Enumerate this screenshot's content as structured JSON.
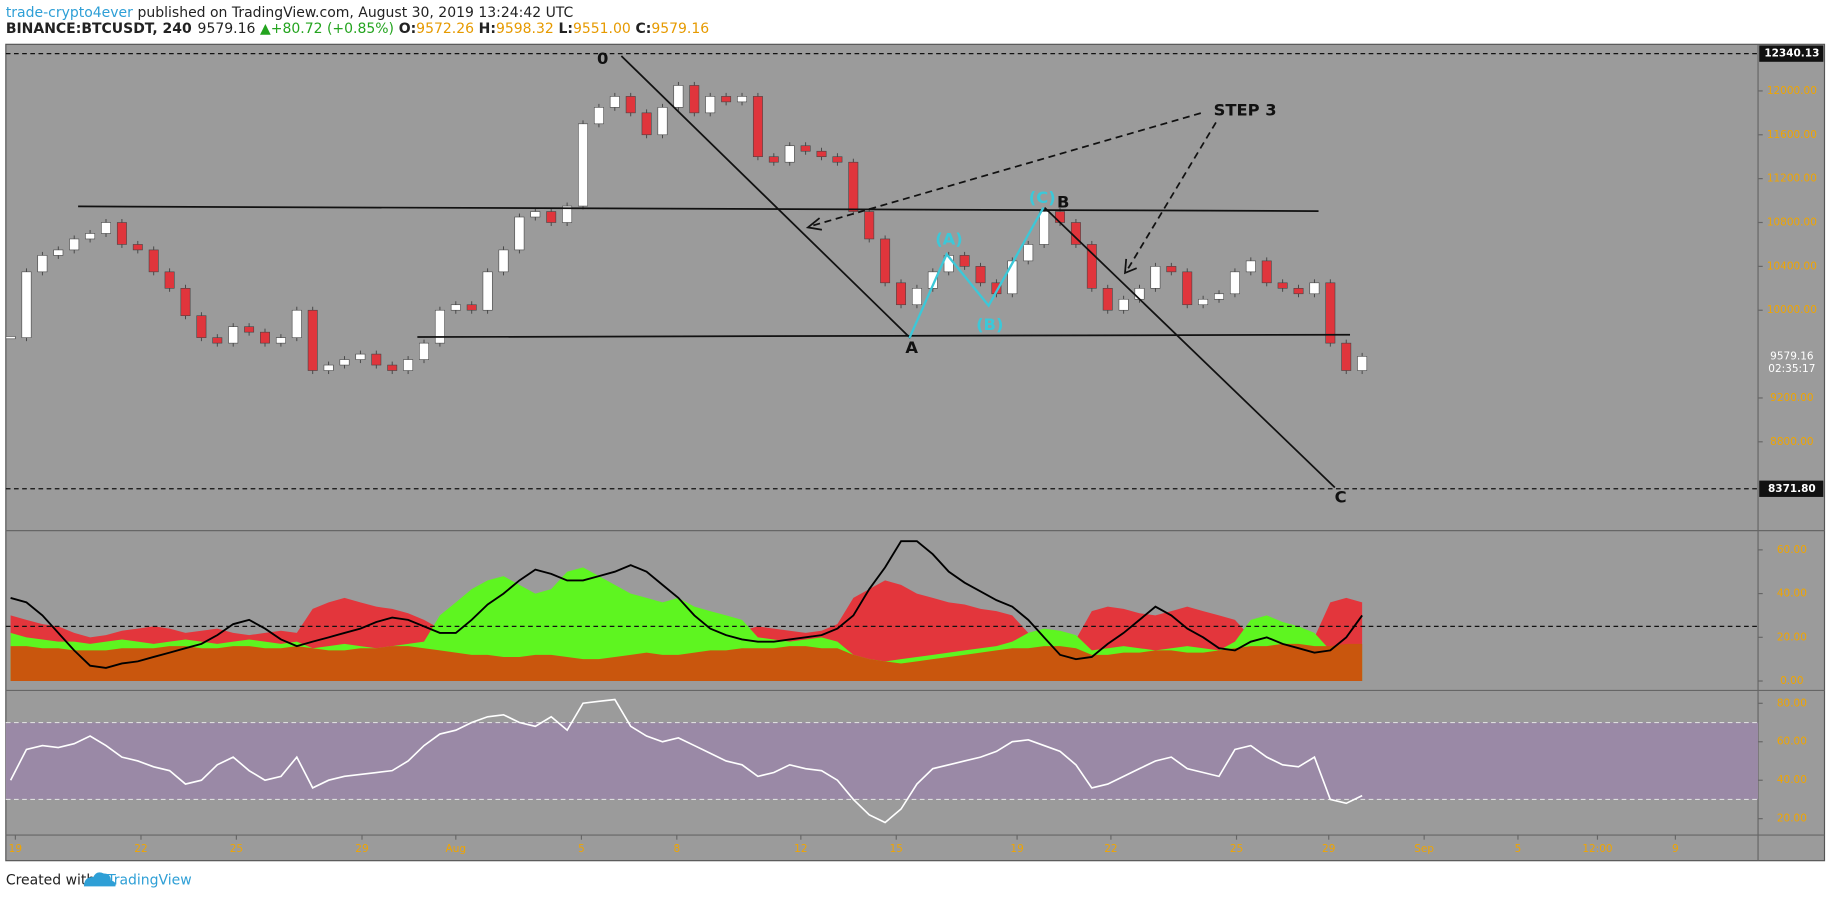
{
  "header": {
    "author": "trade-crypto4ever",
    "published": "published on TradingView.com, August 30, 2019 13:24:42 UTC",
    "symbol": "BINANCE:BTCUSDT, 240",
    "last": "9579.16",
    "change": "▲+80.72 (+0.85%)",
    "ohlc": [
      {
        "label": "O:",
        "value": "9572.26"
      },
      {
        "label": "H:",
        "value": "9598.32"
      },
      {
        "label": "L:",
        "value": "9551.00"
      },
      {
        "label": "C:",
        "value": "9579.16"
      }
    ]
  },
  "chart_data": [
    {
      "type": "candlestick",
      "values": [
        9750,
        10350,
        10500,
        10550,
        10650,
        10700,
        10800,
        10600,
        10550,
        10350,
        10200,
        9950,
        9750,
        9700,
        9850,
        9800,
        9700,
        9750,
        10000,
        9450,
        9500,
        9550,
        9600,
        9500,
        9450,
        9550,
        9700,
        10000,
        10050,
        10000,
        10350,
        10550,
        10850,
        10900,
        10800,
        10950,
        11700,
        11850,
        11950,
        11800,
        11600,
        11850,
        12050,
        11800,
        11950,
        11900,
        11950,
        11400,
        11350,
        11500,
        11450,
        11400,
        11350,
        10900,
        10650,
        10250,
        10050,
        10200,
        10350,
        10500,
        10400,
        10250,
        10150,
        10450,
        10600,
        10900,
        10800,
        10600,
        10200,
        10000,
        10100,
        10200,
        10400,
        10350,
        10050,
        10100,
        10150,
        10350,
        10450,
        10250,
        10200,
        10150,
        10250,
        9700,
        9450,
        9579.16
      ],
      "up_color": "#ffffff",
      "down_color": "#e0353c",
      "ylim": [
        7990,
        12425
      ],
      "yticks": [
        {
          "value": 12000,
          "label": "12000.00"
        },
        {
          "value": 11600,
          "label": "11600.00"
        },
        {
          "value": 11200,
          "label": "11200.00"
        },
        {
          "value": 10800,
          "label": "10800.00"
        },
        {
          "value": 10400,
          "label": "10400.00"
        },
        {
          "value": 10000,
          "label": "10000.00"
        },
        {
          "value": 9200,
          "label": "9200.00"
        },
        {
          "value": 8800,
          "label": "8800.00"
        }
      ],
      "levels": [
        {
          "value": 12340.13,
          "label": "12340.13"
        },
        {
          "value": 8371.8,
          "label": "8371.80"
        }
      ],
      "last": {
        "value": 9579.16,
        "label": "9579.16"
      },
      "countdown": "02:35:17",
      "xlim": [
        -0.3,
        109.9
      ],
      "xticks": [
        {
          "value": 0.3,
          "label": "19"
        },
        {
          "value": 8.2,
          "label": "22"
        },
        {
          "value": 14.2,
          "label": "25"
        },
        {
          "value": 22.1,
          "label": "29"
        },
        {
          "value": 28.0,
          "label": "Aug"
        },
        {
          "value": 35.9,
          "label": "5"
        },
        {
          "value": 41.9,
          "label": "8"
        },
        {
          "value": 49.7,
          "label": "12"
        },
        {
          "value": 55.7,
          "label": "15"
        },
        {
          "value": 63.3,
          "label": "19"
        },
        {
          "value": 69.2,
          "label": "22"
        },
        {
          "value": 77.1,
          "label": "25"
        },
        {
          "value": 82.9,
          "label": "29"
        },
        {
          "value": 88.9,
          "label": "Sep"
        },
        {
          "value": 94.8,
          "label": "5"
        },
        {
          "value": 99.8,
          "label": "12:00"
        },
        {
          "value": 104.7,
          "label": "9"
        }
      ]
    },
    {
      "type": "area",
      "ylim": [
        -4.3,
        68.8
      ],
      "yticks": [
        {
          "value": 60,
          "label": "60.00"
        },
        {
          "value": 40,
          "label": "40.00"
        },
        {
          "value": 20,
          "label": "20.00"
        },
        {
          "value": 0,
          "label": "0.00"
        }
      ],
      "level": 25,
      "series": [
        {
          "color": "#e3363c",
          "values": [
            30,
            28,
            26,
            25,
            22,
            20,
            21,
            23,
            24,
            25,
            24,
            22,
            23,
            24,
            22,
            21,
            22,
            23,
            22,
            33,
            36,
            38,
            36,
            34,
            33,
            31,
            28,
            24,
            25,
            26,
            25,
            24,
            23,
            22,
            24,
            25,
            26,
            25,
            24,
            23,
            24,
            25,
            26,
            24,
            23,
            22,
            23,
            25,
            24,
            23,
            22,
            23,
            26,
            38,
            42,
            46,
            44,
            40,
            38,
            36,
            35,
            33,
            32,
            30,
            22,
            21,
            20,
            19,
            32,
            34,
            33,
            31,
            30,
            32,
            34,
            32,
            30,
            28,
            20,
            19,
            18,
            19,
            20,
            36,
            38,
            36
          ]
        },
        {
          "color": "#5ef520",
          "values": [
            22,
            20,
            19,
            18,
            18,
            17,
            18,
            19,
            18,
            17,
            18,
            19,
            18,
            17,
            18,
            19,
            18,
            17,
            18,
            15,
            16,
            17,
            16,
            15,
            16,
            17,
            18,
            30,
            36,
            42,
            46,
            48,
            44,
            40,
            42,
            50,
            52,
            48,
            44,
            40,
            38,
            36,
            38,
            34,
            32,
            30,
            28,
            20,
            19,
            18,
            19,
            20,
            18,
            12,
            10,
            9,
            10,
            11,
            12,
            13,
            14,
            15,
            16,
            18,
            22,
            24,
            23,
            21,
            14,
            15,
            16,
            15,
            14,
            15,
            16,
            15,
            14,
            18,
            28,
            30,
            27,
            25,
            22,
            14,
            15,
            14
          ]
        },
        {
          "color": "#c9560d",
          "values": [
            16,
            16,
            15,
            15,
            14,
            14,
            14,
            15,
            15,
            15,
            16,
            16,
            15,
            15,
            16,
            16,
            15,
            15,
            16,
            15,
            14,
            14,
            15,
            15,
            16,
            16,
            15,
            14,
            13,
            12,
            12,
            11,
            11,
            12,
            12,
            11,
            10,
            10,
            11,
            12,
            13,
            12,
            12,
            13,
            14,
            14,
            15,
            15,
            15,
            16,
            16,
            15,
            15,
            12,
            10,
            9,
            8,
            9,
            10,
            11,
            12,
            13,
            14,
            15,
            15,
            16,
            16,
            15,
            12,
            12,
            13,
            13,
            14,
            14,
            13,
            13,
            14,
            15,
            16,
            16,
            17,
            17,
            16,
            16,
            17,
            17
          ]
        }
      ],
      "line": {
        "color": "#000000",
        "values": [
          38,
          36,
          30,
          22,
          14,
          7,
          6,
          8,
          9,
          11,
          13,
          15,
          17,
          21,
          26,
          28,
          24,
          19,
          16,
          18,
          20,
          22,
          24,
          27,
          29,
          28,
          25,
          22,
          22,
          28,
          35,
          40,
          46,
          51,
          49,
          46,
          46,
          48,
          50,
          53,
          50,
          44,
          38,
          30,
          24,
          21,
          19,
          18,
          18,
          19,
          20,
          21,
          24,
          30,
          42,
          52,
          64,
          64,
          58,
          50,
          45,
          41,
          37,
          34,
          28,
          20,
          12,
          10,
          11,
          17,
          22,
          28,
          34,
          30,
          24,
          20,
          15,
          14,
          18,
          20,
          17,
          15,
          13,
          14,
          20,
          30
        ]
      }
    },
    {
      "type": "line",
      "ylim": [
        11.5,
        86.7
      ],
      "yticks": [
        {
          "value": 80,
          "label": "80.00"
        },
        {
          "value": 60,
          "label": "60.00"
        },
        {
          "value": 40,
          "label": "40.00"
        },
        {
          "value": 20,
          "label": "20.00"
        }
      ],
      "band": [
        30,
        70
      ],
      "band_color": "#9a89a6",
      "color": "#ffffff",
      "values": [
        40,
        56,
        58,
        57,
        59,
        63,
        58,
        52,
        50,
        47,
        45,
        38,
        40,
        48,
        52,
        45,
        40,
        42,
        52,
        36,
        40,
        42,
        43,
        44,
        45,
        50,
        58,
        64,
        66,
        70,
        73,
        74,
        70,
        68,
        73,
        66,
        80,
        81,
        82,
        68,
        63,
        60,
        62,
        58,
        54,
        50,
        48,
        42,
        44,
        48,
        46,
        45,
        40,
        30,
        22,
        18,
        25,
        38,
        46,
        48,
        50,
        52,
        55,
        60,
        61,
        58,
        55,
        48,
        36,
        38,
        42,
        46,
        50,
        52,
        46,
        44,
        42,
        56,
        58,
        52,
        48,
        47,
        52,
        30,
        28,
        32
      ]
    }
  ],
  "annotations": [
    "0",
    "A",
    "B",
    "C",
    "(A)",
    "(B)",
    "(C)",
    "STEP 3"
  ],
  "footer": {
    "text": "Created with",
    "brand": "TradingView"
  }
}
